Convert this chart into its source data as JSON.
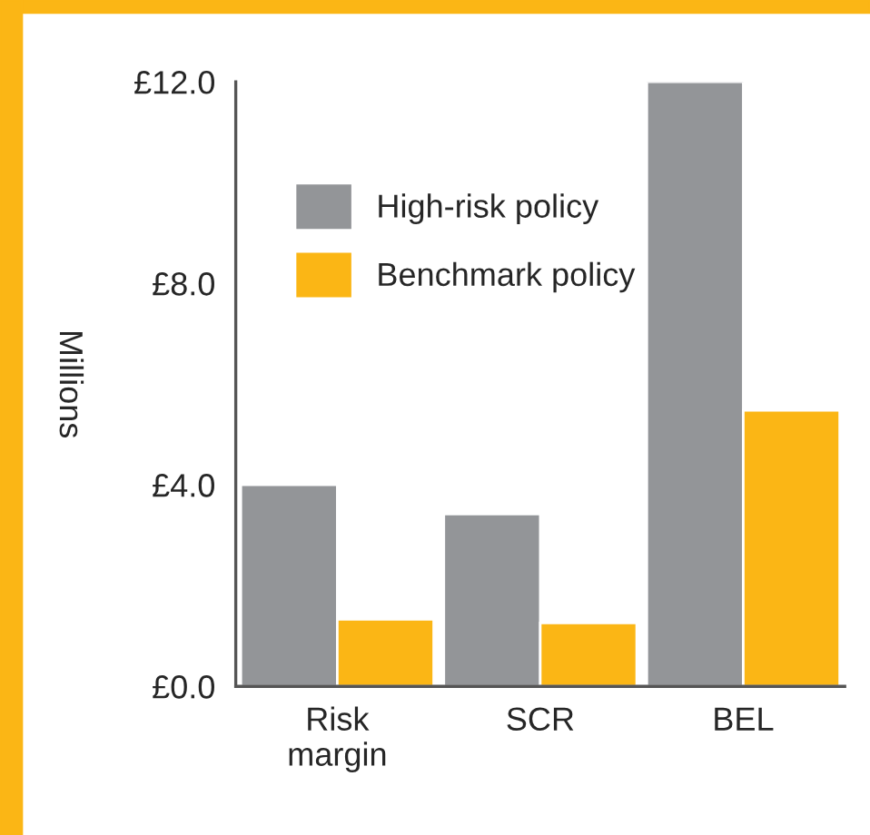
{
  "chart_data": {
    "type": "bar",
    "ylabel": "Millions",
    "categories": [
      "Risk\nmargin",
      "SCR",
      "BEL"
    ],
    "series": [
      {
        "name": "High-risk policy",
        "color": "#939598",
        "values": [
          4.0,
          3.42,
          12.0
        ]
      },
      {
        "name": "Benchmark policy",
        "color": "#fbb615",
        "values": [
          1.33,
          1.26,
          5.48
        ]
      }
    ],
    "ylim": [
      0,
      12
    ],
    "yticks": [
      {
        "value": 0,
        "label": "£0.0"
      },
      {
        "value": 4,
        "label": "£4.0"
      },
      {
        "value": 8,
        "label": "£8.0"
      },
      {
        "value": 12,
        "label": "£12.0"
      }
    ],
    "grid": false,
    "legend": "top left"
  }
}
